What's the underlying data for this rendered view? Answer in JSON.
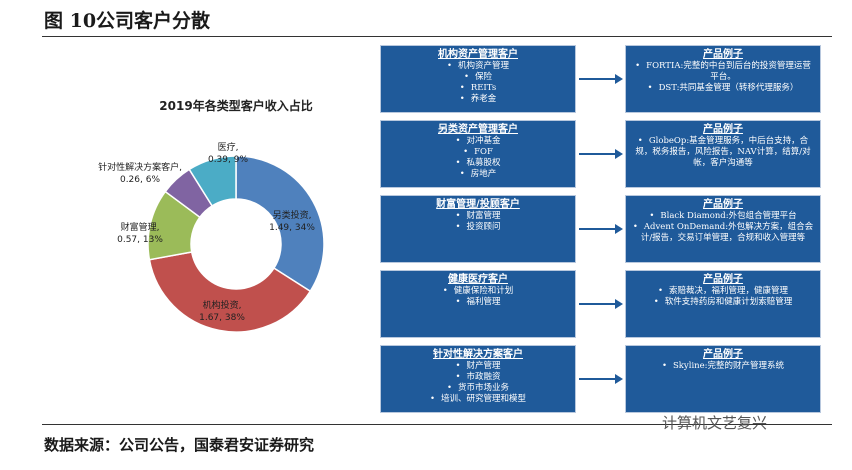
{
  "header": {
    "title": "图 10公司客户分散"
  },
  "chart_data": {
    "type": "pie",
    "title": "2019年各类型客户收入占比",
    "donut": true,
    "categories": [
      "另类投资,",
      "机构投资,",
      "财富管理,",
      "针对性解决方案客户,",
      "医疗,"
    ],
    "values": [
      1.49,
      1.67,
      0.57,
      0.26,
      0.39
    ],
    "value_labels": [
      "1.49, 34%",
      "1.67, 38%",
      "0.57, 13%",
      "0.26, 6%",
      "0.39, 9%"
    ],
    "colors": [
      "#4f81bd",
      "#c0504d",
      "#9bbb59",
      "#8064a2",
      "#4bacc6"
    ]
  },
  "diagram": {
    "rows": [
      {
        "client": {
          "title": "机构资产管理客户",
          "items": [
            "机构资产管理",
            "保险",
            "REITs",
            "养老金"
          ]
        },
        "product": {
          "title": "产品例子",
          "items": [
            "FORTIA:完整的中台到后台的投资管理运营平台。",
            "DST:共同基金管理（转移代理服务）"
          ]
        }
      },
      {
        "client": {
          "title": "另类资产管理客户",
          "items": [
            "对冲基金",
            "FOF",
            "私募股权",
            "房地产"
          ]
        },
        "product": {
          "title": "产品例子",
          "items": [
            "GlobeOp:基金管理服务，中后台支持，合规，税务报告，风险报告，NAV计算，结算/对帐，客户沟通等"
          ]
        }
      },
      {
        "client": {
          "title": "财富管理/投顾客户",
          "items": [
            "财富管理",
            "投资顾问"
          ]
        },
        "product": {
          "title": "产品例子",
          "items": [
            "Black Diamond:外包组合管理平台",
            "Advent OnDemand:外包解决方案，组合会计/报告，交易订单管理，合规和收入管理等"
          ]
        }
      },
      {
        "client": {
          "title": "健康医疗客户",
          "items": [
            "健康保险和计划",
            "福利管理"
          ]
        },
        "product": {
          "title": "产品例子",
          "items": [
            "索赔裁决，福利管理，健康管理",
            "软件支持药房和健康计划索赔管理"
          ]
        }
      },
      {
        "client": {
          "title": "针对性解决方案客户",
          "items": [
            "财产管理",
            "市政融资",
            "货币市场业务",
            "培训、研究管理和模型"
          ]
        },
        "product": {
          "title": "产品例子",
          "items": [
            "Skyline:完整的财产管理系统"
          ]
        }
      }
    ]
  },
  "footer": {
    "source": "数据来源：公司公告，国泰君安证券研究"
  },
  "watermark": "计算机文艺复兴"
}
